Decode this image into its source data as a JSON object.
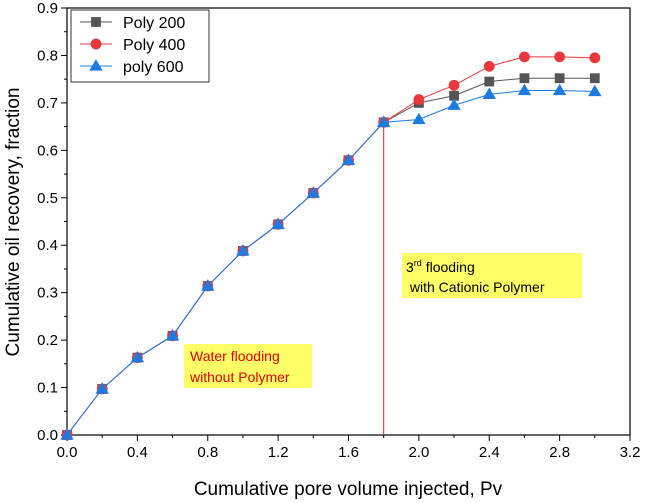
{
  "chart_data": {
    "type": "line",
    "xlabel": "Cumulative pore volume injected, Pv",
    "ylabel": "Cumulative oil recovery, fraction",
    "xlim": [
      0,
      3.2
    ],
    "ylim": [
      0,
      0.9
    ],
    "x_ticks": [
      "0.0",
      "0.4",
      "0.8",
      "1.2",
      "1.6",
      "2.0",
      "2.4",
      "2.8",
      "3.2"
    ],
    "y_ticks": [
      "0.0",
      "0.1",
      "0.2",
      "0.3",
      "0.4",
      "0.5",
      "0.6",
      "0.7",
      "0.8",
      "0.9"
    ],
    "legend_position": "top-left",
    "series": [
      {
        "name": "Poly 200",
        "color": "#555555",
        "marker": "square",
        "x": [
          0,
          0.2,
          0.4,
          0.6,
          0.8,
          1.0,
          1.2,
          1.4,
          1.6,
          1.8,
          2.0,
          2.2,
          2.4,
          2.6,
          2.8,
          3.0
        ],
        "y": [
          0,
          0.097,
          0.163,
          0.209,
          0.314,
          0.388,
          0.444,
          0.51,
          0.579,
          0.659,
          0.7,
          0.715,
          0.745,
          0.752,
          0.752,
          0.752
        ]
      },
      {
        "name": "Poly 400",
        "color": "#e8383b",
        "marker": "circle",
        "x": [
          0,
          0.2,
          0.4,
          0.6,
          0.8,
          1.0,
          1.2,
          1.4,
          1.6,
          1.8,
          2.0,
          2.2,
          2.4,
          2.6,
          2.8,
          3.0
        ],
        "y": [
          0,
          0.097,
          0.163,
          0.209,
          0.314,
          0.388,
          0.444,
          0.51,
          0.579,
          0.659,
          0.707,
          0.737,
          0.777,
          0.797,
          0.797,
          0.795
        ]
      },
      {
        "name": "poly 600",
        "color": "#1e7be0",
        "marker": "triangle",
        "x": [
          0,
          0.2,
          0.4,
          0.6,
          0.8,
          1.0,
          1.2,
          1.4,
          1.6,
          1.8,
          2.0,
          2.2,
          2.4,
          2.6,
          2.8,
          3.0
        ],
        "y": [
          0,
          0.097,
          0.163,
          0.209,
          0.314,
          0.388,
          0.444,
          0.51,
          0.579,
          0.659,
          0.665,
          0.695,
          0.718,
          0.726,
          0.726,
          0.724
        ]
      }
    ],
    "vertical_line": {
      "x": 1.8,
      "color": "#d62728"
    },
    "annotations": [
      {
        "id": "water",
        "lines": [
          "Water flooding",
          "without Polymer"
        ],
        "text_color": "#e00000",
        "bg_color": "#ffff66"
      },
      {
        "id": "third",
        "lines": [
          "3",
          "rd",
          " flooding",
          " with Cationic Polymer"
        ],
        "text_color": "#000000",
        "bg_color": "#ffff66"
      }
    ]
  }
}
